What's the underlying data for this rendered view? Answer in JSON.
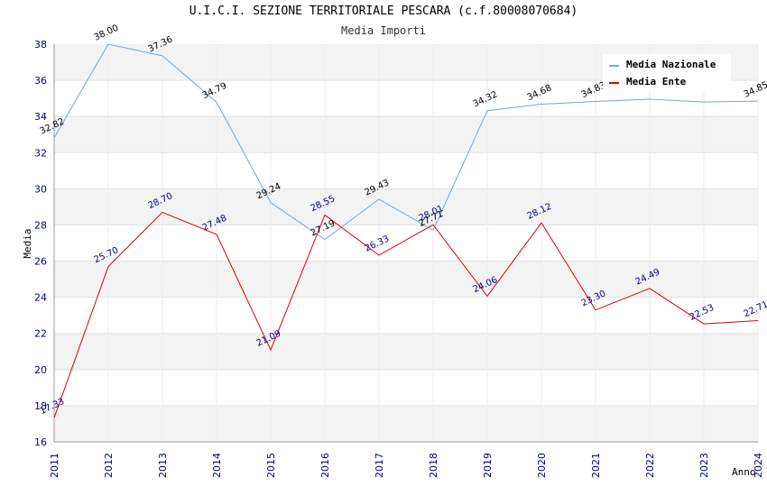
{
  "chart_data": {
    "type": "line",
    "title": "U.I.C.I. SEZIONE TERRITORIALE PESCARA (c.f.80008070684)",
    "subtitle": "Media Importi",
    "xlabel": "Anno",
    "ylabel": "Media",
    "x": [
      "2011",
      "2012",
      "2013",
      "2014",
      "2015",
      "2016",
      "2017",
      "2018",
      "2019",
      "2020",
      "2021",
      "2022",
      "2023",
      "2024"
    ],
    "ylim": [
      16,
      38
    ],
    "yticks": [
      "16",
      "18",
      "20",
      "22",
      "24",
      "26",
      "28",
      "30",
      "32",
      "34",
      "36",
      "38"
    ],
    "grid": "horizontal bands",
    "legend_position": "top-right",
    "series": [
      {
        "name": "Media Nazionale",
        "color": "#6fa8dc",
        "values": [
          32.82,
          38.0,
          37.36,
          34.79,
          29.24,
          27.19,
          29.43,
          27.71,
          34.32,
          34.68,
          34.83,
          34.96,
          34.8,
          34.85
        ],
        "labels": [
          "32.82",
          "38.00",
          "37.36",
          "34.79",
          "29.24",
          "27.19",
          "29.43",
          "27.71",
          "34.32",
          "34.68",
          "34.83",
          "",
          "",
          "34.85"
        ]
      },
      {
        "name": "Media Ente",
        "color": "#e00000",
        "values": [
          17.33,
          25.7,
          28.7,
          27.48,
          21.09,
          28.55,
          26.33,
          28.01,
          24.06,
          28.12,
          23.3,
          24.49,
          22.53,
          22.71
        ],
        "labels": [
          "17.33",
          "25.70",
          "28.70",
          "27.48",
          "21.09",
          "28.55",
          "26.33",
          "28.01",
          "24.06",
          "28.12",
          "23.30",
          "24.49",
          "22.53",
          "22.71"
        ]
      }
    ]
  }
}
